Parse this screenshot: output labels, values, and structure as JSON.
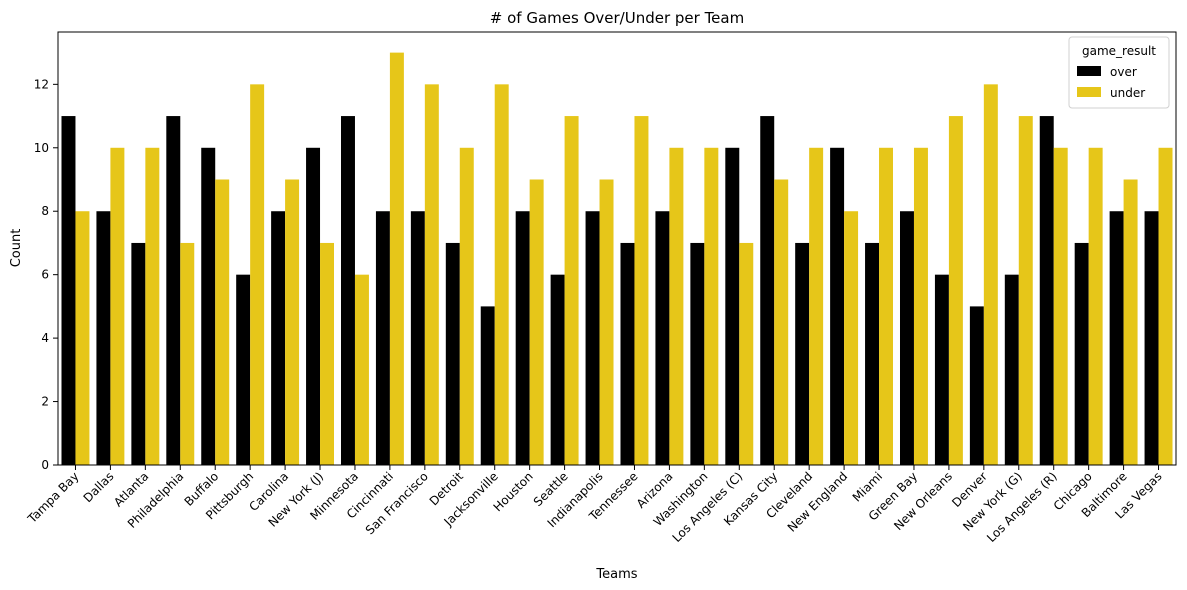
{
  "chart_data": {
    "type": "bar",
    "title": "# of Games Over/Under per Team",
    "xlabel": "Teams",
    "ylabel": "Count",
    "ylim": [
      0,
      13.65
    ],
    "yticks": [
      0,
      2,
      4,
      6,
      8,
      10,
      12
    ],
    "legend": {
      "title": "game_result",
      "placement": "top-right"
    },
    "categories": [
      "Tampa Bay",
      "Dallas",
      "Atlanta",
      "Philadelphia",
      "Buffalo",
      "Pittsburgh",
      "Carolina",
      "New York (J)",
      "Minnesota",
      "Cincinnati",
      "San Francisco",
      "Detroit",
      "Jacksonville",
      "Houston",
      "Seattle",
      "Indianapolis",
      "Tennessee",
      "Arizona",
      "Washington",
      "Los Angeles (C)",
      "Kansas City",
      "Cleveland",
      "New England",
      "Miami",
      "Green Bay",
      "New Orleans",
      "Denver",
      "New York (G)",
      "Los Angeles (R)",
      "Chicago",
      "Baltimore",
      "Las Vegas"
    ],
    "series": [
      {
        "name": "over",
        "color": "#000000",
        "values": [
          11,
          8,
          7,
          11,
          10,
          6,
          8,
          10,
          11,
          8,
          8,
          7,
          5,
          8,
          6,
          8,
          7,
          8,
          7,
          10,
          11,
          7,
          10,
          7,
          8,
          6,
          5,
          6,
          11,
          7,
          8,
          8
        ]
      },
      {
        "name": "under",
        "color": "#e6c619",
        "values": [
          8,
          10,
          10,
          7,
          9,
          12,
          9,
          7,
          6,
          13,
          12,
          10,
          12,
          9,
          11,
          9,
          11,
          10,
          10,
          7,
          9,
          10,
          8,
          10,
          10,
          11,
          12,
          11,
          10,
          10,
          9,
          10
        ]
      }
    ]
  }
}
